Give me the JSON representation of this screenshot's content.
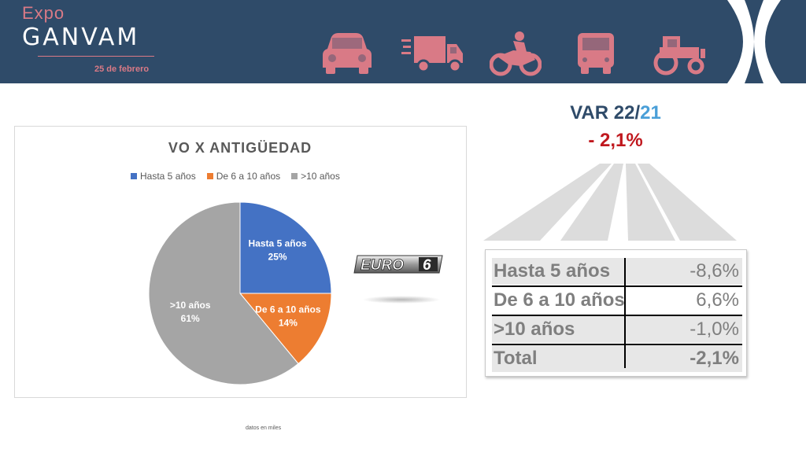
{
  "header": {
    "logo_expo": "Expo",
    "logo_ganvam": "GANVAM",
    "event_date": "25 de febrero",
    "icons": [
      "car-icon",
      "truck-icon",
      "motorcycle-icon",
      "bus-icon",
      "tractor-icon"
    ],
    "icon_color": "#d97a86",
    "background": "#2f4b69"
  },
  "chart_data": {
    "type": "pie",
    "title": "VO X ANTIGÜEDAD",
    "legend_position": "top",
    "slices": [
      {
        "name": "Hasta 5 años",
        "value": 25,
        "label": "25%",
        "color": "#4472c4"
      },
      {
        "name": "De 6 a 10 años",
        "value": 14,
        "label": "14%",
        "color": "#ed7d31"
      },
      {
        "name": ">10 años",
        "value": 61,
        "label": "61%",
        "color": "#a5a5a5"
      }
    ]
  },
  "badge": {
    "text": "EURO",
    "number": "6"
  },
  "footnote": "datos en miles",
  "variation": {
    "title_prefix": "VAR 22/",
    "title_year": "21",
    "value": "- 2,1%"
  },
  "table": {
    "rows": [
      {
        "label": "Hasta 5 años",
        "value": "-8,6%"
      },
      {
        "label": "De 6 a 10 años",
        "value": "6,6%"
      },
      {
        "label": ">10 años",
        "value": "-1,0%"
      },
      {
        "label": "Total",
        "value": "-2,1%"
      }
    ]
  }
}
